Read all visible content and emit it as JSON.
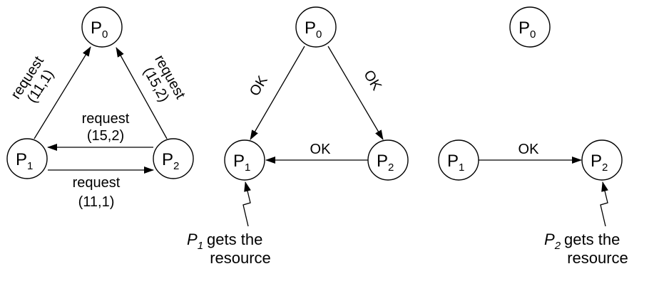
{
  "nodes": {
    "p0": {
      "name": "P",
      "sub": "0"
    },
    "p1": {
      "name": "P",
      "sub": "1"
    },
    "p2": {
      "name": "P",
      "sub": "2"
    }
  },
  "panel1": {
    "req_p1_p0": {
      "line1": "request",
      "line2": "(11,1)"
    },
    "req_p2_p0": {
      "line1": "request",
      "line2": "(15,2)"
    },
    "req_p2_p1": {
      "line1": "request",
      "line2": "(15,2)"
    },
    "req_p1_p2": {
      "line1": "request",
      "line2": "(11,1)"
    }
  },
  "panel2": {
    "ok_p0_p1": "OK",
    "ok_p0_p2": "OK",
    "ok_p2_p1": "OK",
    "note": {
      "italic": "P",
      "sub": "1",
      "rest": "gets the",
      "line2": "resource"
    }
  },
  "panel3": {
    "ok_p1_p2": "OK",
    "note": {
      "italic": "P",
      "sub": "2",
      "rest": "gets the",
      "line2": "resource"
    }
  }
}
